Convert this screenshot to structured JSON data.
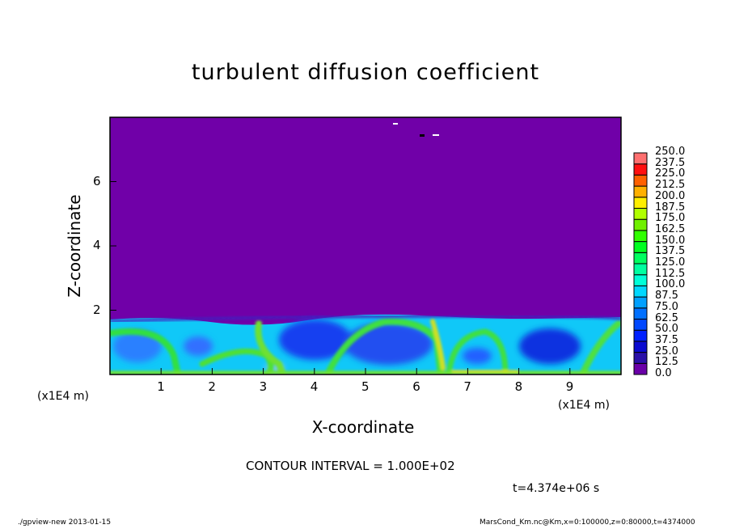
{
  "chart_data": {
    "type": "heatmap",
    "title": "turbulent diffusion coefficient",
    "xlabel": "X-coordinate",
    "ylabel": "Z-coordinate",
    "x_unit": "(x1E4 m)",
    "x_unit_right": "(x1E4 m)",
    "xlim": [
      0,
      10
    ],
    "ylim": [
      0,
      8
    ],
    "x_ticks": [
      "1",
      "2",
      "3",
      "4",
      "5",
      "6",
      "7",
      "8",
      "9"
    ],
    "y_ticks": [
      "2",
      "4",
      "6"
    ],
    "colorbar": {
      "levels": [
        "0.0",
        "12.5",
        "25.0",
        "37.5",
        "50.0",
        "62.5",
        "75.0",
        "87.5",
        "100.0",
        "112.5",
        "125.0",
        "137.5",
        "150.0",
        "162.5",
        "175.0",
        "187.5",
        "200.0",
        "212.5",
        "225.0",
        "237.5",
        "250.0"
      ],
      "colors": [
        "#6a00a8",
        "#2a10a8",
        "#0a0ad0",
        "#0020ff",
        "#0048ff",
        "#0070ff",
        "#00a0ff",
        "#00d8ff",
        "#00ffd8",
        "#00ffa0",
        "#00ff60",
        "#00ff20",
        "#30ff00",
        "#70f000",
        "#b0ff00",
        "#ffee00",
        "#ffb000",
        "#ff6000",
        "#ff1010",
        "#ff7070"
      ]
    },
    "contour_interval": "CONTOUR INTERVAL = 1.000E+02",
    "time": "t=4.374e+06  s"
  },
  "footer": {
    "left": "./gpview-new  2013-01-15",
    "right": "MarsCond_Km.nc@Km,x=0:100000,z=0:80000,t=4374000"
  }
}
